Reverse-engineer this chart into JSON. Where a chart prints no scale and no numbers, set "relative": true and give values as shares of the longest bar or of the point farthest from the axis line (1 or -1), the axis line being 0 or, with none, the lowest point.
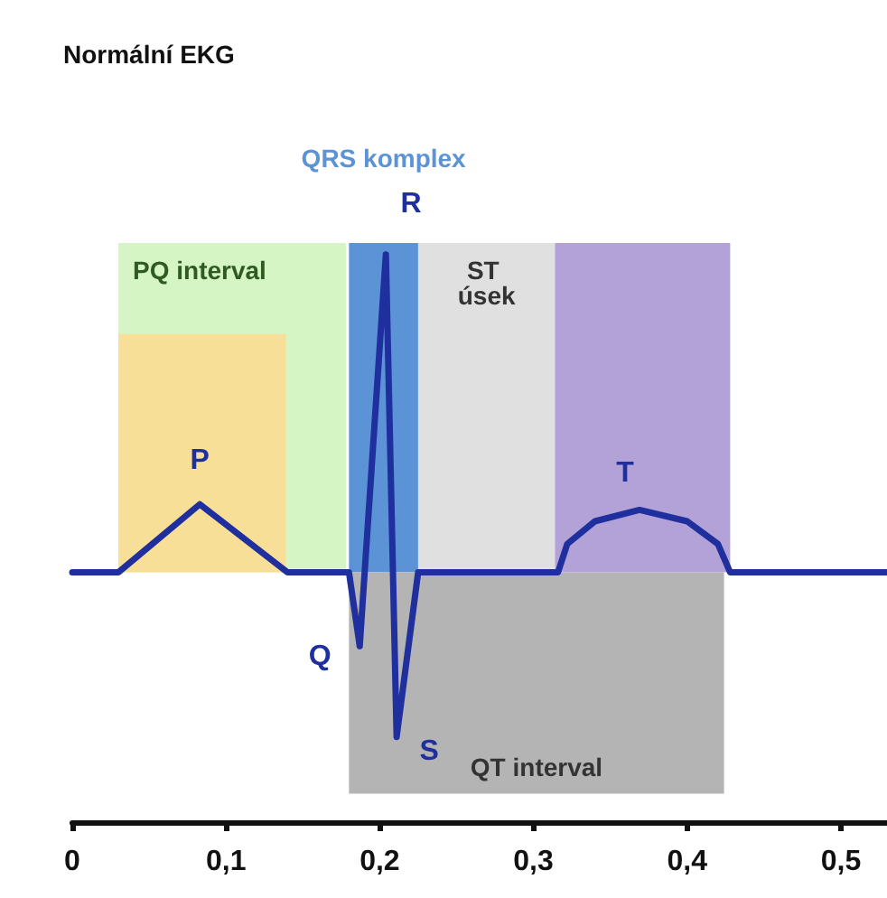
{
  "chart_data": {
    "type": "line",
    "title": "Normální EKG",
    "relative": true,
    "marker": "none",
    "line_style": "solid",
    "x": [
      0,
      0.03,
      0.083,
      0.14,
      0.18,
      0.187,
      0.204,
      0.211,
      0.225,
      0.316,
      0.322,
      0.34,
      0.369,
      0.4,
      0.42,
      0.428,
      0.53
    ],
    "series": [
      {
        "color": "#1f2f9e",
        "values": [
          0.44,
          0.44,
          0.56,
          0.44,
          0.44,
          0.31,
          1,
          0.15,
          0.44,
          0.44,
          0.49,
          0.53,
          0.55,
          0.53,
          0.49,
          0.44,
          0.44
        ]
      }
    ],
    "xlim": [
      0,
      0.53
    ],
    "xticks": [
      0,
      {
        "value": 0.1,
        "label": "0,1"
      },
      {
        "value": 0.2,
        "label": "0,2"
      },
      {
        "value": 0.3,
        "label": "0,3"
      },
      {
        "value": 0.4,
        "label": "0,4"
      },
      {
        "value": 0.5,
        "label": "0,5"
      }
    ],
    "bands": [
      {
        "axis": "x",
        "from": 0.03,
        "to": 0.178,
        "label": "PQ interval",
        "color": "#d6f5c4"
      },
      {
        "axis": "x",
        "from": 0.03,
        "to": 0.139,
        "color": "#f8df98"
      },
      {
        "axis": "x",
        "from": 0.18,
        "to": 0.225,
        "label": "QRS komplex",
        "color": "#5b93d6"
      },
      {
        "axis": "x",
        "from": 0.225,
        "to": 0.314,
        "label": "ST úsek",
        "color": "#e0e0e0"
      },
      {
        "axis": "x",
        "from": 0.314,
        "to": 0.428,
        "color": "#b3a2d8"
      },
      {
        "axis": "x",
        "from": 0.18,
        "to": 0.424,
        "label": "QT interval",
        "color": "#b4b4b4"
      }
    ],
    "annotations": [
      {
        "text": "P",
        "x": 0.083,
        "y": 0.56
      },
      {
        "text": "Q",
        "x": 0.187,
        "y": 0.31
      },
      {
        "text": "R",
        "x": 0.204,
        "y": 1
      },
      {
        "text": "S",
        "x": 0.211,
        "y": 0.15
      },
      {
        "text": "T",
        "x": 0.369,
        "y": 0.55
      }
    ]
  }
}
